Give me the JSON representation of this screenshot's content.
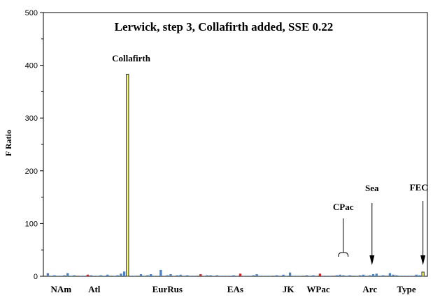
{
  "chart_data": {
    "type": "bar",
    "title": "Lerwick, step 3, Collafirth added, SSE 0.22",
    "xlabel": "",
    "ylabel": "F Ratio",
    "ylim": [
      0,
      500
    ],
    "yticks": [
      "0",
      "100",
      "200",
      "300",
      "400",
      "500"
    ],
    "grid": false,
    "legend": "none",
    "colors": {
      "default": "#4f81bd",
      "red": "#c0282d",
      "highlight": "#ffff66",
      "highlight_stroke": "#333333"
    },
    "groups": [
      {
        "label": "NAm",
        "bars": [
          6,
          1,
          2,
          1,
          1,
          2,
          6,
          1,
          2
        ]
      },
      {
        "label": "Atl",
        "bars": [
          1,
          1,
          3,
          2,
          1,
          1,
          2,
          1,
          3
        ]
      },
      {
        "label": "Collafirth",
        "bars": [
          1,
          2,
          5,
          9,
          383,
          1,
          1
        ]
      },
      {
        "label": "EurRus",
        "bars": [
          4,
          1,
          2,
          4,
          1,
          1,
          12,
          1,
          2,
          4,
          1,
          2,
          3,
          1,
          2,
          1,
          1
        ]
      },
      {
        "label": "EAs",
        "bars": [
          4,
          1,
          2,
          2,
          1,
          2,
          1,
          1,
          1,
          1,
          2,
          1,
          5,
          1,
          1,
          1,
          2,
          4,
          1,
          1,
          1,
          1
        ]
      },
      {
        "label": "JK",
        "bars": [
          2,
          1,
          3,
          1,
          7,
          1,
          1,
          1
        ]
      },
      {
        "label": "WPac",
        "bars": [
          2,
          1,
          2,
          1,
          5,
          1,
          1,
          1
        ]
      },
      {
        "label": "CPac",
        "bars": [
          2,
          3,
          2,
          1,
          2
        ]
      },
      {
        "label": "Arc",
        "bars": [
          1,
          2,
          3,
          1,
          2,
          4,
          5,
          1,
          2
        ]
      },
      {
        "label": "Type",
        "bars": [
          6,
          3,
          2,
          1,
          1,
          1,
          1,
          1,
          3,
          2,
          8
        ]
      }
    ],
    "category_labels": [
      "NAm",
      "Atl",
      "EurRus",
      "EAs",
      "JK",
      "WPac",
      "Arc",
      "Type"
    ],
    "annotations": [
      {
        "label": "Collafirth",
        "type": "text"
      },
      {
        "label": "CPac",
        "type": "bracket"
      },
      {
        "label": "Sea",
        "type": "arrow"
      },
      {
        "label": "FEC",
        "type": "arrow"
      }
    ]
  }
}
